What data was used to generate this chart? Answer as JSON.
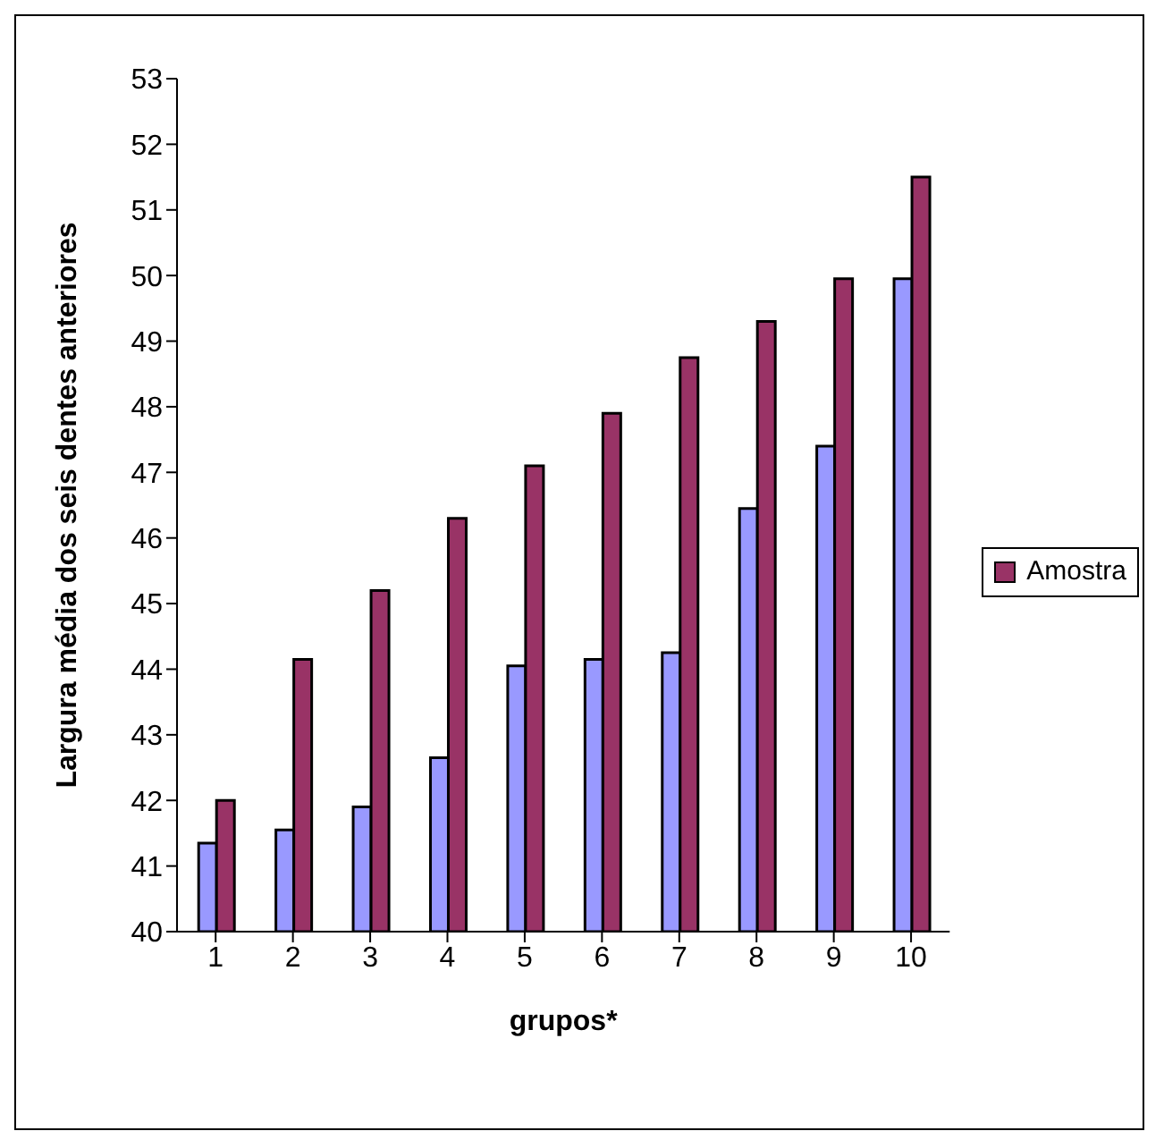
{
  "chart_data": {
    "type": "bar",
    "xlabel": "grupos*",
    "ylabel": "Largura média dos seis dentes anteriores",
    "categories": [
      "1",
      "2",
      "3",
      "4",
      "5",
      "6",
      "7",
      "8",
      "9",
      "10"
    ],
    "series": [
      {
        "color": "#9999ff",
        "values": [
          41.35,
          41.55,
          41.9,
          42.65,
          44.05,
          44.15,
          44.25,
          46.45,
          47.4,
          49.95
        ]
      },
      {
        "name": "Amostra",
        "color": "#993366",
        "values": [
          42.0,
          44.15,
          45.2,
          46.3,
          47.1,
          47.9,
          48.75,
          49.3,
          49.95,
          51.5
        ]
      }
    ],
    "ylim": [
      40,
      53
    ],
    "yticks": [
      40,
      41,
      42,
      43,
      44,
      45,
      46,
      47,
      48,
      49,
      50,
      51,
      52,
      53
    ],
    "grid": false,
    "legend": "right"
  }
}
